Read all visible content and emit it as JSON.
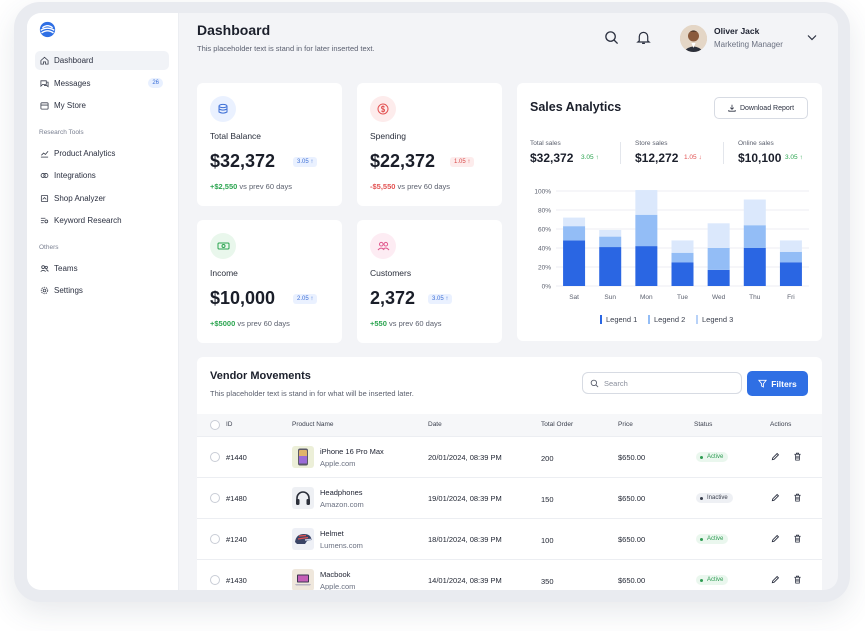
{
  "sidebar": {
    "items": [
      {
        "label": "Dashboard",
        "icon": "home-icon",
        "active": true
      },
      {
        "label": "Messages",
        "icon": "chat-icon",
        "badge": "26"
      },
      {
        "label": "My Store",
        "icon": "store-icon"
      }
    ],
    "research_title": "Research Tools",
    "research_items": [
      {
        "label": "Product Analytics",
        "icon": "chart-line-icon"
      },
      {
        "label": "Integrations",
        "icon": "integrations-icon"
      },
      {
        "label": "Shop Analyzer",
        "icon": "shop-analyzer-icon"
      },
      {
        "label": "Keyword Research",
        "icon": "keyword-icon"
      }
    ],
    "others_title": "Others",
    "others_items": [
      {
        "label": "Teams",
        "icon": "team-icon"
      },
      {
        "label": "Settings",
        "icon": "gear-icon"
      }
    ]
  },
  "header": {
    "title": "Dashboard",
    "subtitle": "This placeholder text is stand in for later inserted text.",
    "user_name": "Oliver Jack",
    "user_role": "Marketing Manager"
  },
  "stats": [
    {
      "label": "Total Balance",
      "value": "$32,372",
      "pill": "3.05 ↑",
      "pill_type": "up",
      "delta": "+$2,550",
      "delta_type": "pos",
      "suffix": "vs prev 60 days",
      "icon": "database-icon"
    },
    {
      "label": "Spending",
      "value": "$22,372",
      "pill": "1.05 ↑",
      "pill_type": "down",
      "delta": "-$5,550",
      "delta_type": "neg",
      "suffix": "vs prev 60 days",
      "icon": "dollar-icon"
    },
    {
      "label": "Income",
      "value": "$10,000",
      "pill": "2.05 ↑",
      "pill_type": "up",
      "delta": "+$5000",
      "delta_type": "pos",
      "suffix": "vs prev 60 days",
      "icon": "cash-icon"
    },
    {
      "label": "Customers",
      "value": "2,372",
      "pill": "3.05 ↑",
      "pill_type": "up",
      "delta": "+550",
      "delta_type": "pos",
      "suffix": "vs prev 60 days",
      "icon": "users-icon"
    }
  ],
  "sales": {
    "title": "Sales Analytics",
    "download_label": "Download Report",
    "kpis": [
      {
        "label": "Total sales",
        "value": "$32,372",
        "delta": "3.05 ↑",
        "type": "up"
      },
      {
        "label": "Store sales",
        "value": "$12,272",
        "delta": "1.05 ↓",
        "type": "down"
      },
      {
        "label": "Online sales",
        "value": "$10,100",
        "delta": "3.05 ↑",
        "type": "up"
      }
    ]
  },
  "chart_data": {
    "type": "bar",
    "stacked": true,
    "categories": [
      "Sat",
      "Sun",
      "Mon",
      "Tue",
      "Wed",
      "Thu",
      "Fri"
    ],
    "series": [
      {
        "name": "Legend 1",
        "color": "#2a66e3",
        "values": [
          48,
          41,
          42,
          25,
          17,
          40,
          25
        ]
      },
      {
        "name": "Legend 2",
        "color": "#93bdf6",
        "values": [
          15,
          11,
          33,
          10,
          23,
          24,
          11
        ]
      },
      {
        "name": "Legend 3",
        "color": "#dbe8fc",
        "values": [
          9,
          7,
          26,
          13,
          26,
          27,
          12
        ]
      }
    ],
    "yticks": [
      "0%",
      "20%",
      "40%",
      "60%",
      "80%",
      "100%"
    ],
    "ylim": [
      0,
      100
    ]
  },
  "vendor": {
    "title": "Vendor Movements",
    "subtitle": "This placeholder text is stand in for what will be inserted later.",
    "search_placeholder": "Search",
    "filters_label": "Filters",
    "columns": [
      "ID",
      "Product Name",
      "Date",
      "Total Order",
      "Price",
      "Status",
      "Actions"
    ],
    "rows": [
      {
        "id": "#1440",
        "name": "iPhone 16 Pro Max",
        "vendor": "Apple.com",
        "date": "20/01/2024, 08:39 PM",
        "orders": "200",
        "price": "$650.00",
        "status": "Active",
        "status_type": "active",
        "img": "phone-icon"
      },
      {
        "id": "#1480",
        "name": "Headphones",
        "vendor": "Amazon.com",
        "date": "19/01/2024, 08:39 PM",
        "orders": "150",
        "price": "$650.00",
        "status": "Inactive",
        "status_type": "inactive",
        "img": "headphones-icon"
      },
      {
        "id": "#1240",
        "name": "Helmet",
        "vendor": "Lumens.com",
        "date": "18/01/2024, 08:39 PM",
        "orders": "100",
        "price": "$650.00",
        "status": "Active",
        "status_type": "active",
        "img": "helmet-icon"
      },
      {
        "id": "#1430",
        "name": "Macbook",
        "vendor": "Apple.com",
        "date": "14/01/2024, 08:39 PM",
        "orders": "350",
        "price": "$650.00",
        "status": "Active",
        "status_type": "active",
        "img": "laptop-icon"
      }
    ]
  }
}
